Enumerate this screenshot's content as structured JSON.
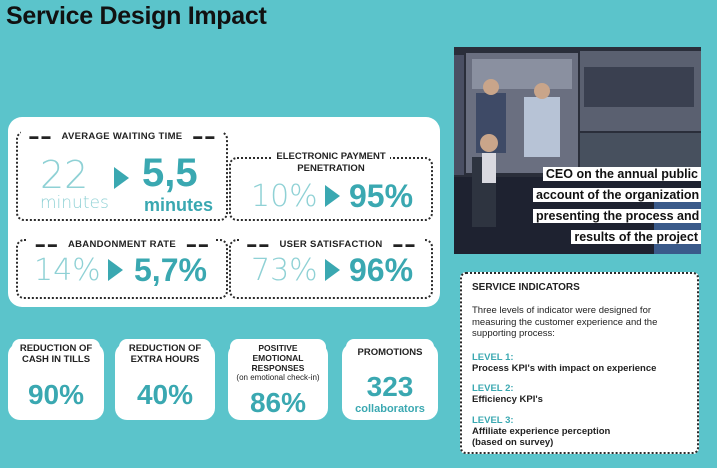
{
  "page": {
    "title": "Service Design Impact"
  },
  "metrics": {
    "waiting": {
      "label": "AVERAGE WAITING TIME",
      "before_value": "22",
      "before_unit": "minutes",
      "after_value": "5,5",
      "after_unit": "minutes"
    },
    "epayment": {
      "label_line1": "ELECTRONIC PAYMENT",
      "label_line2": "PENETRATION",
      "before": "10%",
      "after": "95%"
    },
    "abandonment": {
      "label": "ABANDONMENT RATE",
      "before": "14%",
      "after": "5,7%"
    },
    "satisfaction": {
      "label": "USER SATISFACTION",
      "before": "73%",
      "after": "96%"
    }
  },
  "photo": {
    "caption": "CEO on the annual public account of the organization presenting the process and results of the project"
  },
  "indicators": {
    "title": "SERVICE INDICATORS",
    "intro": "Three levels of indicator were designed for measuring the customer experience and the supporting process:",
    "levels": [
      {
        "name": "LEVEL 1:",
        "desc": "Process KPI's with impact on experience"
      },
      {
        "name": "LEVEL 2:",
        "desc": "Efficiency KPI's"
      },
      {
        "name": "LEVEL 3:",
        "desc_line1": "Affiliate experience perception",
        "desc_line2": "(based on survey)"
      }
    ]
  },
  "stats": [
    {
      "label_line1": "REDUCTION OF",
      "label_line2": "CASH IN TILLS",
      "value": "90%"
    },
    {
      "label_line1": "REDUCTION OF",
      "label_line2": "EXTRA HOURS",
      "value": "40%"
    },
    {
      "label_line1": "POSITIVE EMOTIONAL",
      "label_line2": "RESPONSES",
      "label_note": "(on emotional check-in)",
      "value": "86%"
    },
    {
      "label_line1": "PROMOTIONS",
      "value": "323",
      "value_note": "collaborators"
    }
  ],
  "colors": {
    "background": "#5bc4cb",
    "accent": "#3aa8b1",
    "muted": "#8fd1d5"
  }
}
